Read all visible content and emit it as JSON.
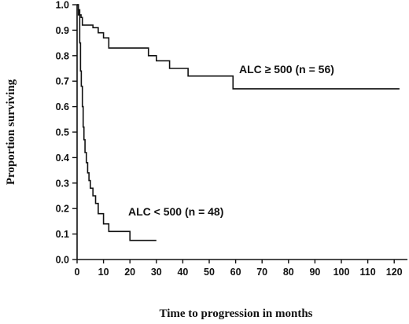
{
  "chart_data": {
    "type": "line",
    "title": "",
    "xlabel": "Time to progression in months",
    "ylabel": "Proportion surviving",
    "xlim": [
      0,
      125
    ],
    "ylim": [
      0,
      1.0
    ],
    "x_ticks": [
      0,
      10,
      20,
      30,
      40,
      50,
      60,
      70,
      80,
      90,
      100,
      110,
      120
    ],
    "y_ticks": [
      0.0,
      0.1,
      0.2,
      0.3,
      0.4,
      0.5,
      0.6,
      0.7,
      0.8,
      0.9,
      1.0
    ],
    "x_tick_labels": [
      "0",
      "10",
      "20",
      "30",
      "40",
      "50",
      "60",
      "70",
      "80",
      "90",
      "100",
      "110",
      "120"
    ],
    "y_tick_labels": [
      "0.0",
      "0.1",
      "0.2",
      "0.3",
      "0.4",
      "0.5",
      "0.6",
      "0.7",
      "0.8",
      "0.9",
      "1.0"
    ],
    "grid": false,
    "series": [
      {
        "name": "ALC ≥ 500 (n = 56)",
        "step": true,
        "x": [
          0,
          0.5,
          1,
          1.5,
          2,
          6,
          8,
          10,
          12,
          27,
          30,
          35,
          42,
          59,
          122
        ],
        "y": [
          1.0,
          0.98,
          0.96,
          0.95,
          0.92,
          0.91,
          0.89,
          0.87,
          0.83,
          0.8,
          0.78,
          0.75,
          0.72,
          0.67,
          0.67
        ]
      },
      {
        "name": "ALC < 500 (n = 48)",
        "step": true,
        "x": [
          0,
          0.5,
          1,
          1.3,
          1.6,
          2,
          2.3,
          2.6,
          3,
          3.5,
          4,
          4.5,
          5,
          6,
          7,
          8,
          10,
          12,
          20,
          30
        ],
        "y": [
          1.0,
          0.96,
          0.85,
          0.74,
          0.68,
          0.6,
          0.52,
          0.47,
          0.42,
          0.38,
          0.34,
          0.31,
          0.28,
          0.25,
          0.22,
          0.18,
          0.14,
          0.11,
          0.075,
          0.075
        ]
      }
    ],
    "annotations": [
      {
        "text": "ALC ≥ 500 (n = 56)",
        "series": 0
      },
      {
        "text": "ALC < 500 (n = 48)",
        "series": 1
      }
    ]
  }
}
